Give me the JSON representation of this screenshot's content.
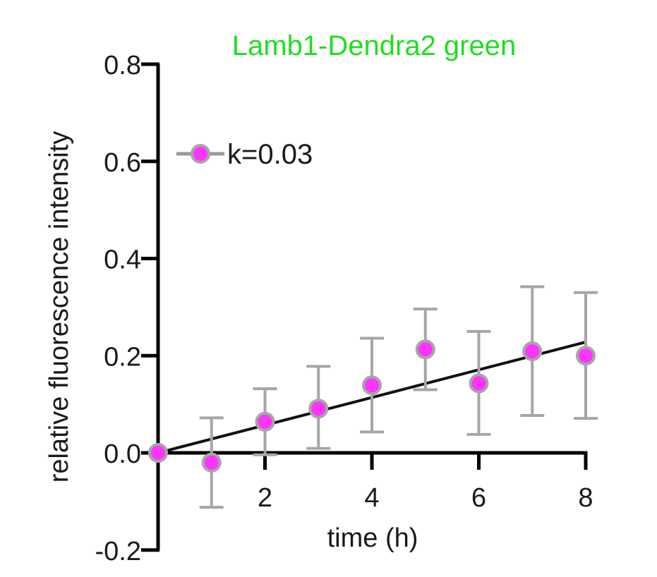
{
  "chart_data": {
    "type": "scatter",
    "title": "Lamb1-Dendra2 green",
    "title_color": "#22dd22",
    "xlabel": "time (h)",
    "ylabel": "relative fluorescence intensity",
    "xlim": [
      0,
      8
    ],
    "ylim": [
      -0.2,
      0.8
    ],
    "xticks": [
      2,
      4,
      6,
      8
    ],
    "xtick_labels": [
      "2",
      "4",
      "6",
      "8"
    ],
    "yticks": [
      -0.2,
      0.0,
      0.2,
      0.4,
      0.6,
      0.8
    ],
    "ytick_labels": [
      "-0.2",
      "0.0",
      "0.2",
      "0.4",
      "0.6",
      "0.8"
    ],
    "grid": false,
    "legend_position": "upper-left",
    "series": [
      {
        "name": "k=0.03",
        "marker_color": "#ff33ff",
        "marker_edge_color": "#a6a6a6",
        "errorbar_color": "#a6a6a6",
        "x": [
          0,
          1,
          2,
          3,
          4,
          5,
          6,
          7,
          8
        ],
        "y": [
          0.0,
          -0.02,
          0.064,
          0.091,
          0.139,
          0.213,
          0.143,
          0.209,
          0.2
        ],
        "err_upper": [
          0.0,
          0.072,
          0.132,
          0.178,
          0.236,
          0.296,
          0.25,
          0.342,
          0.33
        ],
        "err_lower": [
          0.0,
          -0.112,
          -0.004,
          0.009,
          0.043,
          0.13,
          0.038,
          0.077,
          0.071
        ]
      }
    ],
    "fit": {
      "type": "line",
      "color": "#111111",
      "x": [
        0,
        8
      ],
      "y": [
        0.0,
        0.228
      ]
    }
  }
}
